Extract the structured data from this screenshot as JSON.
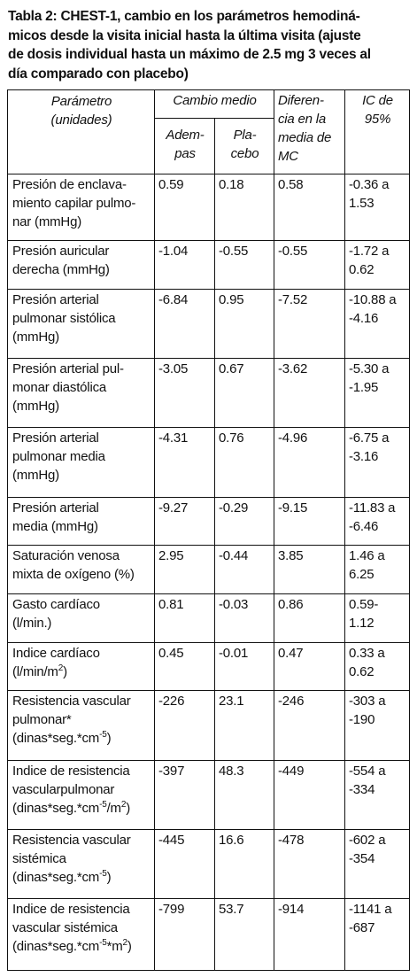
{
  "title": "Tabla 2: CHEST-1, cambio en los parámetros hemodiná-micos desde la visita inicial hasta la última visita (ajuste de dosis individual hasta un máximo de 2.5 mg 3 veces al día comparado con placebo)",
  "title_lines": [
    "Tabla 2: CHEST-1, cambio en los parámetros hemodiná-",
    "micos desde la visita inicial hasta la última visita (ajuste",
    "de dosis individual hasta un máximo de 2.5 mg 3 veces al",
    "día comparado con placebo)"
  ],
  "headers": {
    "param_line1": "Parámetro",
    "param_line2": "(unidades)",
    "cambio": "Cambio medio",
    "adem_line1": "Adem-",
    "adem_line2": "pas",
    "plac_line1": "Pla-",
    "plac_line2": "cebo",
    "dif_line1": "Diferen-",
    "dif_line2": "cia en la",
    "dif_line3": "media de",
    "dif_line4": "MC",
    "ic_line1": "IC de",
    "ic_line2": "95%"
  },
  "rows": [
    {
      "param": [
        "Presión de enclava-",
        "miento capilar pulmo-",
        "nar (mmHg)"
      ],
      "adem": "0.59",
      "plac": "0.18",
      "dif": "0.58",
      "ic": [
        "-0.36 a",
        "1.53"
      ]
    },
    {
      "param": [
        "Presión auricular",
        "derecha (mmHg)"
      ],
      "adem": "-1.04",
      "plac": "-0.55",
      "dif": "-0.55",
      "ic": [
        "-1.72 a",
        "0.62"
      ]
    },
    {
      "param": [
        "Presión arterial",
        "pulmonar sistólica",
        "(mmHg)"
      ],
      "adem": "-6.84",
      "plac": "0.95",
      "dif": "-7.52",
      "ic": [
        "-10.88 a",
        "-4.16"
      ]
    },
    {
      "param": [
        "Presión arterial pul-",
        "monar diastólica",
        "(mmHg)"
      ],
      "adem": "-3.05",
      "plac": "0.67",
      "dif": "-3.62",
      "ic": [
        "-5.30 a",
        "-1.95"
      ]
    },
    {
      "param": [
        "Presión arterial",
        "pulmonar media",
        "(mmHg)"
      ],
      "adem": "-4.31",
      "plac": "0.76",
      "dif": "-4.96",
      "ic": [
        "-6.75 a",
        "-3.16"
      ]
    },
    {
      "param": [
        "Presión arterial",
        "media (mmHg)"
      ],
      "adem": "-9.27",
      "plac": "-0.29",
      "dif": "-9.15",
      "ic": [
        "-11.83 a",
        "-6.46"
      ]
    },
    {
      "param": [
        "Saturación venosa",
        "mixta de oxígeno (%)"
      ],
      "adem": "2.95",
      "plac": "-0.44",
      "dif": "3.85",
      "ic": [
        "1.46 a",
        "6.25"
      ]
    },
    {
      "param": [
        "Gasto cardíaco",
        "(l/min.)"
      ],
      "adem": "0.81",
      "plac": "-0.03",
      "dif": "0.86",
      "ic": [
        "0.59-",
        "1.12"
      ]
    },
    {
      "param": [
        "Indice cardíaco",
        "(l/min/m",
        "2",
        ")"
      ],
      "adem": "0.45",
      "plac": "-0.01",
      "dif": "0.47",
      "ic": [
        "0.33 a",
        "0.62"
      ]
    },
    {
      "param": [
        "Resistencia vascular",
        "pulmonar*",
        "(dinas*seg.*cm",
        "-5",
        ")"
      ],
      "adem": "-226",
      "plac": "23.1",
      "dif": "-246",
      "ic": [
        "-303 a",
        "-190"
      ]
    },
    {
      "param": [
        "Indice de resistencia",
        "vascularpulmonar",
        "(dinas*seg.*cm",
        "-5",
        "/m",
        "2",
        ")"
      ],
      "adem": "-397",
      "plac": "48.3",
      "dif": "-449",
      "ic": [
        "-554 a",
        "-334"
      ]
    },
    {
      "param": [
        "Resistencia vascular",
        "sistémica",
        "(dinas*seg.*cm",
        "-5",
        ")"
      ],
      "adem": "-445",
      "plac": "16.6",
      "dif": "-478",
      "ic": [
        "-602 a",
        "-354"
      ]
    },
    {
      "param": [
        "Indice de resistencia",
        "vascular sistémica",
        "(dinas*seg.*cm",
        "-5",
        "*m",
        "2",
        ")"
      ],
      "adem": "-799",
      "plac": "53.7",
      "dif": "-914",
      "ic": [
        "-1141 a",
        "-687"
      ]
    }
  ]
}
